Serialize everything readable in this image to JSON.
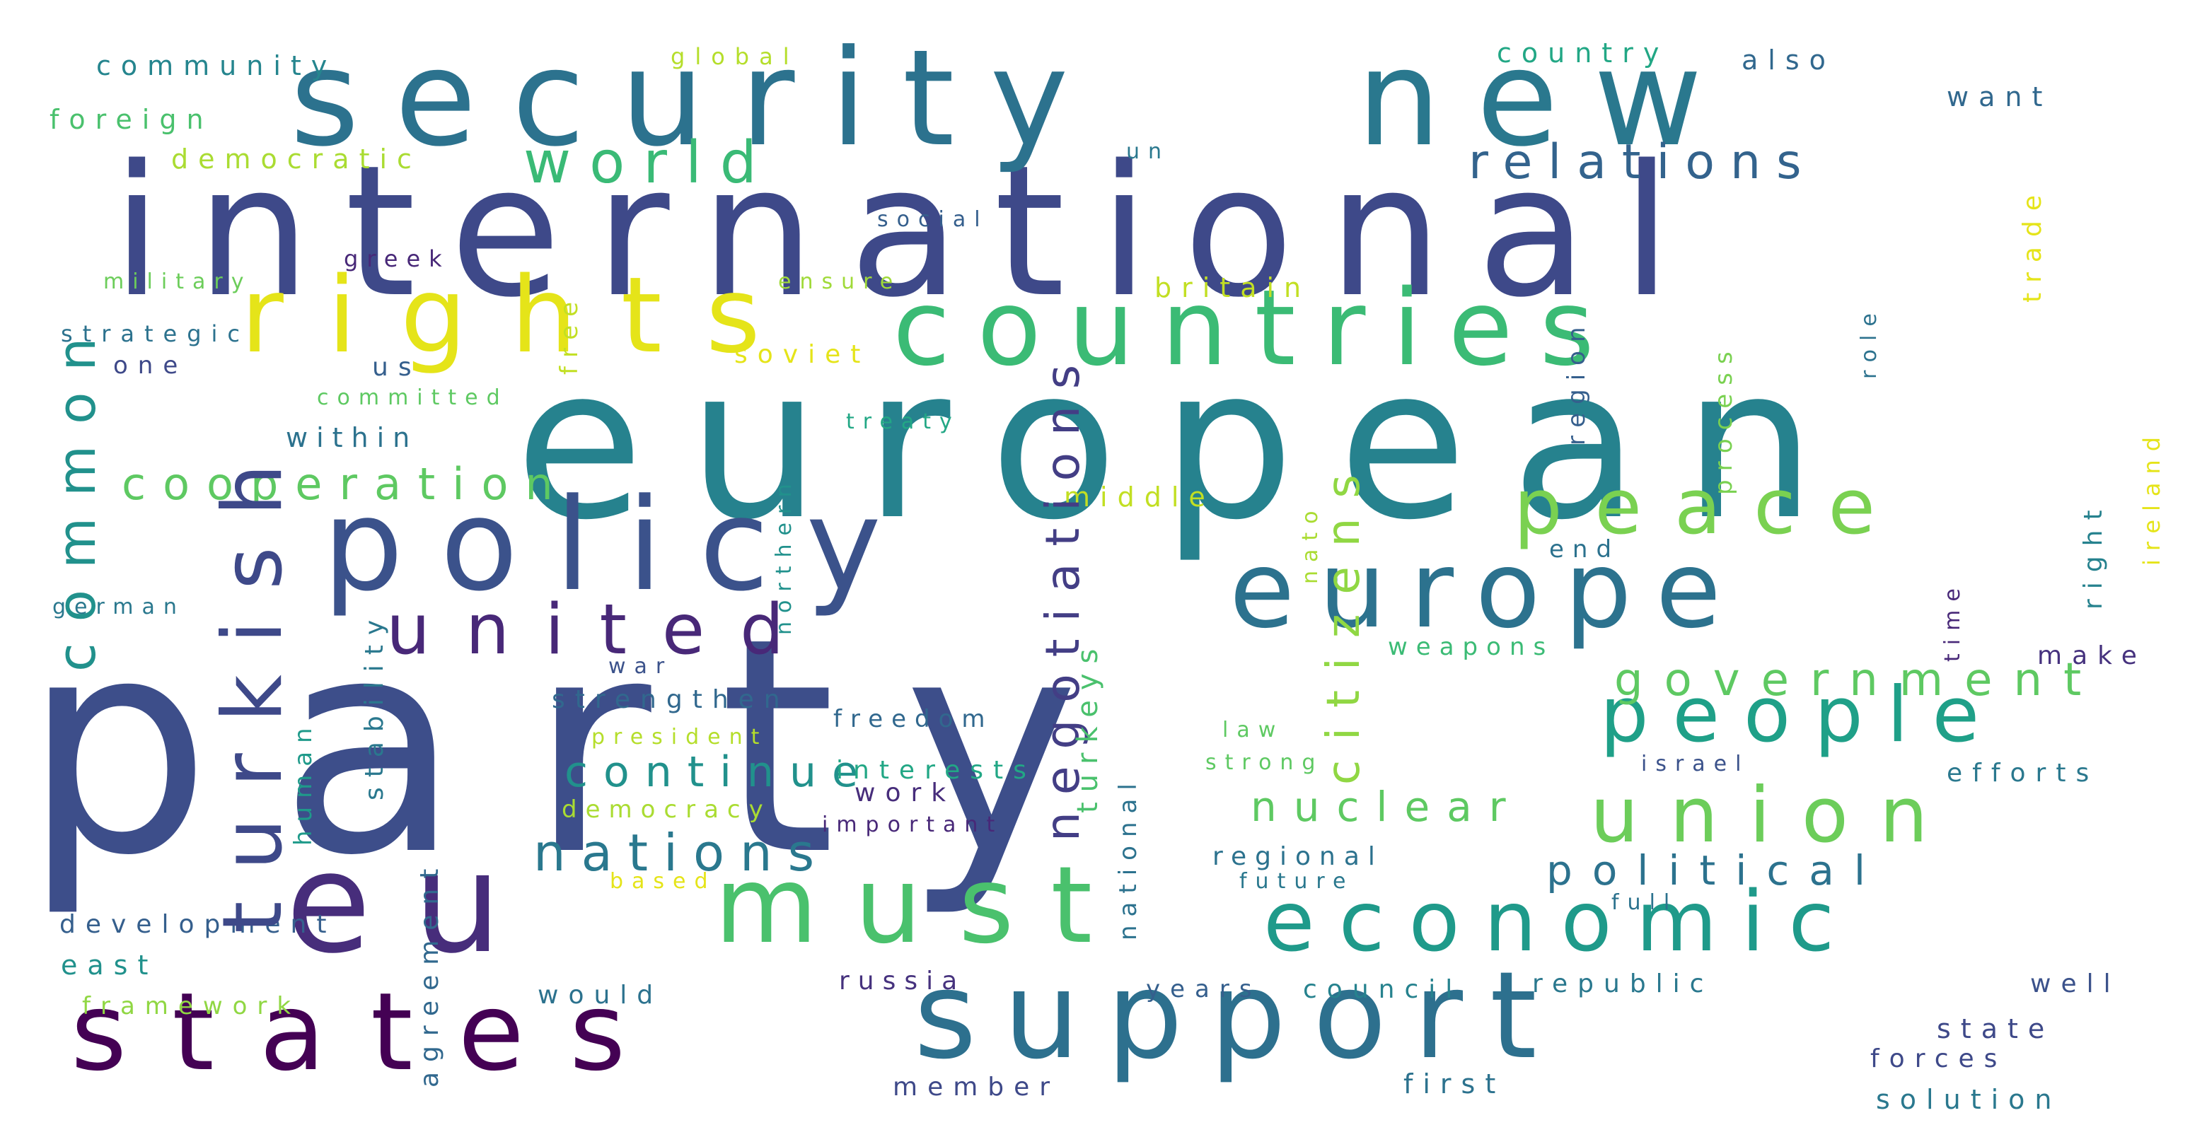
{
  "words": [
    {
      "text": "party",
      "color": "#3d4e8a"
    },
    {
      "text": "european",
      "color": "#26828e"
    },
    {
      "text": "international",
      "color": "#3e4989"
    },
    {
      "text": "security",
      "color": "#2c728e"
    },
    {
      "text": "new",
      "color": "#2a788e"
    },
    {
      "text": "rights",
      "color": "#e5e419"
    },
    {
      "text": "countries",
      "color": "#3bbb75"
    },
    {
      "text": "policy",
      "color": "#3b528b"
    },
    {
      "text": "eu",
      "color": "#472d7b"
    },
    {
      "text": "must",
      "color": "#4ac16d"
    },
    {
      "text": "economic",
      "color": "#1f9a8a"
    },
    {
      "text": "states",
      "color": "#440154"
    },
    {
      "text": "support",
      "color": "#2d708e"
    },
    {
      "text": "europe",
      "color": "#2c728e"
    },
    {
      "text": "people",
      "color": "#1fa088"
    },
    {
      "text": "union",
      "color": "#6ccd5a"
    },
    {
      "text": "peace",
      "color": "#7ad151"
    },
    {
      "text": "united",
      "color": "#482878"
    },
    {
      "text": "world",
      "color": "#3aba76"
    },
    {
      "text": "relations",
      "color": "#33638d"
    },
    {
      "text": "cooperation",
      "color": "#5ec962"
    },
    {
      "text": "nations",
      "color": "#2a788e"
    },
    {
      "text": "government",
      "color": "#5ec962"
    },
    {
      "text": "political",
      "color": "#2c728e"
    },
    {
      "text": "nuclear",
      "color": "#5ec962"
    },
    {
      "text": "continue",
      "color": "#21918c"
    },
    {
      "text": "also",
      "color": "#31688e"
    },
    {
      "text": "want",
      "color": "#31688e"
    },
    {
      "text": "country",
      "color": "#22a785"
    },
    {
      "text": "community",
      "color": "#25858e"
    },
    {
      "text": "foreign",
      "color": "#4ac16d"
    },
    {
      "text": "democratic",
      "color": "#aadc32"
    },
    {
      "text": "global",
      "color": "#b5de2b"
    },
    {
      "text": "un",
      "color": "#2a788e"
    },
    {
      "text": "greek",
      "color": "#482878"
    },
    {
      "text": "social",
      "color": "#355f8d"
    },
    {
      "text": "military",
      "color": "#6ccd5a"
    },
    {
      "text": "ensure",
      "color": "#a0da39"
    },
    {
      "text": "britain",
      "color": "#c2df23"
    },
    {
      "text": "strategic",
      "color": "#2c728e"
    },
    {
      "text": "one",
      "color": "#3e4989"
    },
    {
      "text": "us",
      "color": "#355f8d"
    },
    {
      "text": "committed",
      "color": "#5ec962"
    },
    {
      "text": "soviet",
      "color": "#e5e419"
    },
    {
      "text": "within",
      "color": "#2c728e"
    },
    {
      "text": "treaty",
      "color": "#22a785"
    },
    {
      "text": "middle",
      "color": "#c2df23"
    },
    {
      "text": "end",
      "color": "#2c728e"
    },
    {
      "text": "german",
      "color": "#2a788e"
    },
    {
      "text": "war",
      "color": "#3b528b"
    },
    {
      "text": "weapons",
      "color": "#3bbb75"
    },
    {
      "text": "make",
      "color": "#46327e"
    },
    {
      "text": "strengthen",
      "color": "#31688e"
    },
    {
      "text": "president",
      "color": "#b5de2b"
    },
    {
      "text": "freedom",
      "color": "#31688e"
    },
    {
      "text": "law",
      "color": "#5ec962"
    },
    {
      "text": "strong",
      "color": "#5ec962"
    },
    {
      "text": "israel",
      "color": "#3b528b"
    },
    {
      "text": "efforts",
      "color": "#2a788e"
    },
    {
      "text": "interests",
      "color": "#22a785"
    },
    {
      "text": "work",
      "color": "#472d7b"
    },
    {
      "text": "democracy",
      "color": "#aadc32"
    },
    {
      "text": "important",
      "color": "#482878"
    },
    {
      "text": "regional",
      "color": "#2c728e"
    },
    {
      "text": "based",
      "color": "#e5e419"
    },
    {
      "text": "future",
      "color": "#2a788e"
    },
    {
      "text": "full",
      "color": "#2c728e"
    },
    {
      "text": "development",
      "color": "#355f8d"
    },
    {
      "text": "east",
      "color": "#21918c"
    },
    {
      "text": "russia",
      "color": "#46327e"
    },
    {
      "text": "years",
      "color": "#355f8d"
    },
    {
      "text": "council",
      "color": "#26828e"
    },
    {
      "text": "republic",
      "color": "#2a788e"
    },
    {
      "text": "well",
      "color": "#3b528b"
    },
    {
      "text": "framework",
      "color": "#90d743"
    },
    {
      "text": "would",
      "color": "#2c728e"
    },
    {
      "text": "state",
      "color": "#3e4989"
    },
    {
      "text": "forces",
      "color": "#3e4989"
    },
    {
      "text": "member",
      "color": "#3e4989"
    },
    {
      "text": "first",
      "color": "#2c728e"
    },
    {
      "text": "solution",
      "color": "#2a788e"
    },
    {
      "text": "turkish",
      "color": "#3e4989"
    },
    {
      "text": "common",
      "color": "#21918c"
    },
    {
      "text": "negotiations",
      "color": "#433e85"
    },
    {
      "text": "turkeys",
      "color": "#4ac16d"
    },
    {
      "text": "citizens",
      "color": "#90d743"
    },
    {
      "text": "free",
      "color": "#c2df23"
    },
    {
      "text": "region",
      "color": "#355f8d"
    },
    {
      "text": "process",
      "color": "#7ad151"
    },
    {
      "text": "role",
      "color": "#2c728e"
    },
    {
      "text": "trade",
      "color": "#e5e419"
    },
    {
      "text": "ireland",
      "color": "#e5e419"
    },
    {
      "text": "nato",
      "color": "#aadc32"
    },
    {
      "text": "right",
      "color": "#26828e"
    },
    {
      "text": "time",
      "color": "#482878"
    },
    {
      "text": "human",
      "color": "#1f9a8a"
    },
    {
      "text": "northern",
      "color": "#21918c"
    },
    {
      "text": "stability",
      "color": "#2a788e"
    },
    {
      "text": "agreement",
      "color": "#31688e"
    },
    {
      "text": "national",
      "color": "#2c728e"
    }
  ]
}
